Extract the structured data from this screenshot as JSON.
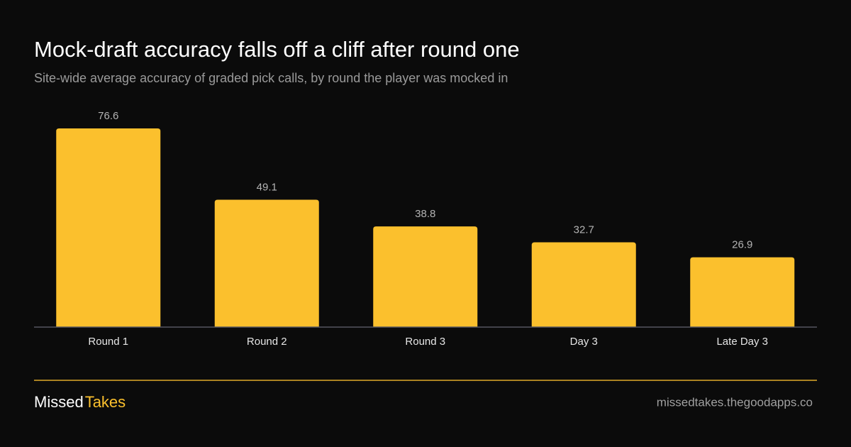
{
  "chart_data": {
    "type": "bar",
    "title": "Mock-draft accuracy falls off a cliff after round one",
    "subtitle": "Site-wide average accuracy of graded pick calls, by round the player was mocked in",
    "categories": [
      "Round 1",
      "Round 2",
      "Round 3",
      "Day 3",
      "Late Day 3"
    ],
    "values": [
      76.6,
      49.1,
      38.8,
      32.7,
      26.9
    ],
    "color": "#fbc02d",
    "ylim": [
      0,
      80
    ]
  },
  "footer": {
    "brand_left": "Missed",
    "brand_right": "Takes",
    "url": "missedtakes.thegoodapps.co"
  }
}
